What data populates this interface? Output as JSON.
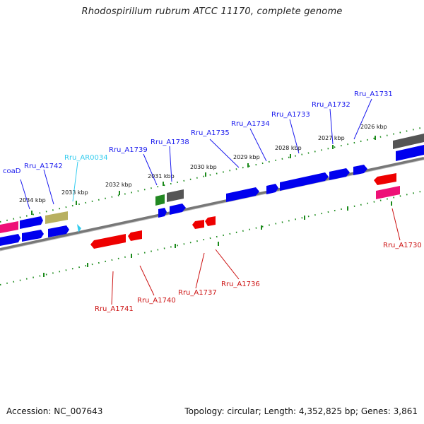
{
  "title": "Rhodospirillum rubrum ATCC 11170, complete genome",
  "accession": "Accession: NC_007643",
  "topology": "Topology: circular; Length: 4,352,825 bp; Genes: 3,861",
  "colors": {
    "forward_gene": "#0000ee",
    "reverse_gene": "#ee0000",
    "rna_gene": "#33ccee",
    "pseudo_gene": "#b8b060",
    "other_gene": "#555555",
    "highlight_gene": "#ee1177",
    "green_gene": "#228822",
    "backbone": "#777777",
    "ticks": "#1a8a1a"
  },
  "kbp_ticks": [
    "2034 kbp",
    "2033 kbp",
    "2032 kbp",
    "2031 kbp",
    "2030 kbp",
    "2029 kbp",
    "2028 kbp",
    "2027 kbp",
    "2026 kbp"
  ],
  "forward_labels": [
    "coaD",
    "Rru_A1742",
    "Rru_AR0034",
    "Rru_A1739",
    "Rru_A1738",
    "Rru_A1735",
    "Rru_A1734",
    "Rru_A1733",
    "Rru_A1732",
    "Rru_A1731"
  ],
  "reverse_labels": [
    "Rru_A1741",
    "Rru_A1740",
    "Rru_A1737",
    "Rru_A1736",
    "Rru_A1730"
  ]
}
